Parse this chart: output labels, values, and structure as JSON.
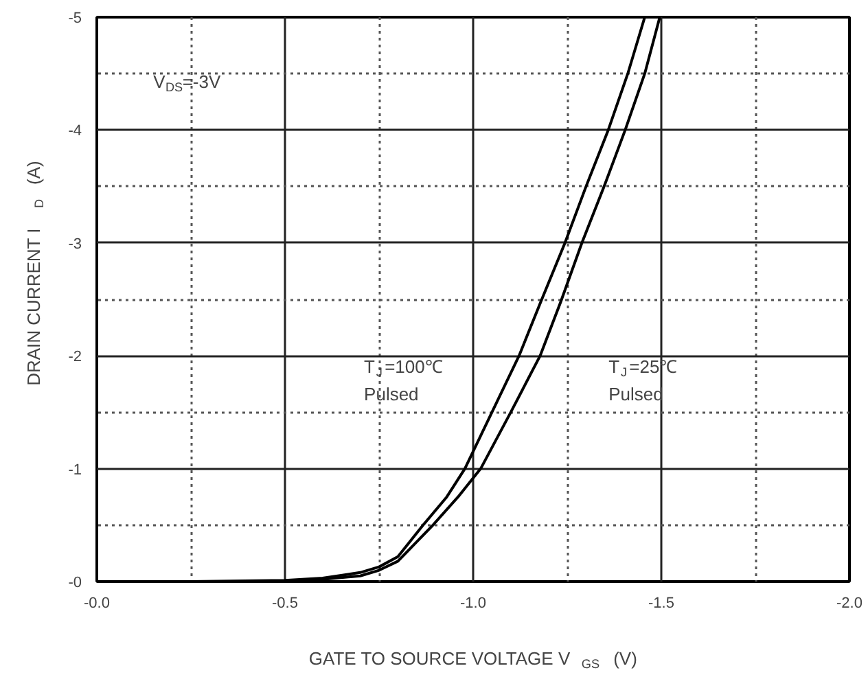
{
  "chart_data": {
    "type": "line",
    "xlabel": "GATE TO SOURCE VOLTAGE   V$_{GS}$   (V)",
    "ylabel": "DRAIN CURRENT   I$_{D}$   (A)",
    "xlim": [
      0,
      -2
    ],
    "ylim": [
      0,
      -5
    ],
    "xticks": [
      {
        "value": 0,
        "label": "-0.0"
      },
      -0.5,
      {
        "value": -1,
        "label": "-1.0"
      },
      -1.5,
      {
        "value": -2,
        "label": "-2.0"
      }
    ],
    "yticks": [
      {
        "value": 0,
        "label": "-0"
      },
      -1,
      -2,
      -3,
      -4,
      -5
    ],
    "grid": true,
    "line_style": "solid",
    "series": [
      {
        "color": "#000000",
        "x": [
          0,
          -0.25,
          -0.5,
          -0.6,
          -0.7,
          -0.75,
          -0.8,
          -0.867,
          -0.93,
          -0.978,
          -1.05,
          -1.122,
          -1.18,
          -1.244,
          -1.3,
          -1.359,
          -1.411,
          -1.456
        ],
        "values": [
          0,
          0,
          -0.01,
          -0.03,
          -0.08,
          -0.13,
          -0.22,
          -0.5,
          -0.75,
          -1,
          -1.5,
          -2,
          -2.48,
          -3,
          -3.5,
          -4,
          -4.5,
          -5
        ]
      },
      {
        "color": "#000000",
        "x": [
          0,
          -0.25,
          -0.5,
          -0.6,
          -0.7,
          -0.75,
          -0.8,
          -0.893,
          -0.96,
          -1.02,
          -1.1,
          -1.178,
          -1.233,
          -1.289,
          -1.348,
          -1.404,
          -1.456,
          -1.496
        ],
        "values": [
          0,
          0,
          0,
          -0.02,
          -0.05,
          -0.1,
          -0.18,
          -0.5,
          -0.75,
          -1,
          -1.5,
          -2,
          -2.48,
          -3,
          -3.5,
          -4,
          -4.5,
          -5
        ]
      }
    ],
    "annotations": [
      "V$_{DS}$=-3V",
      "T$_{J}$=100℃\nPulsed",
      "T$_{J}$=25℃\nPulsed"
    ]
  }
}
